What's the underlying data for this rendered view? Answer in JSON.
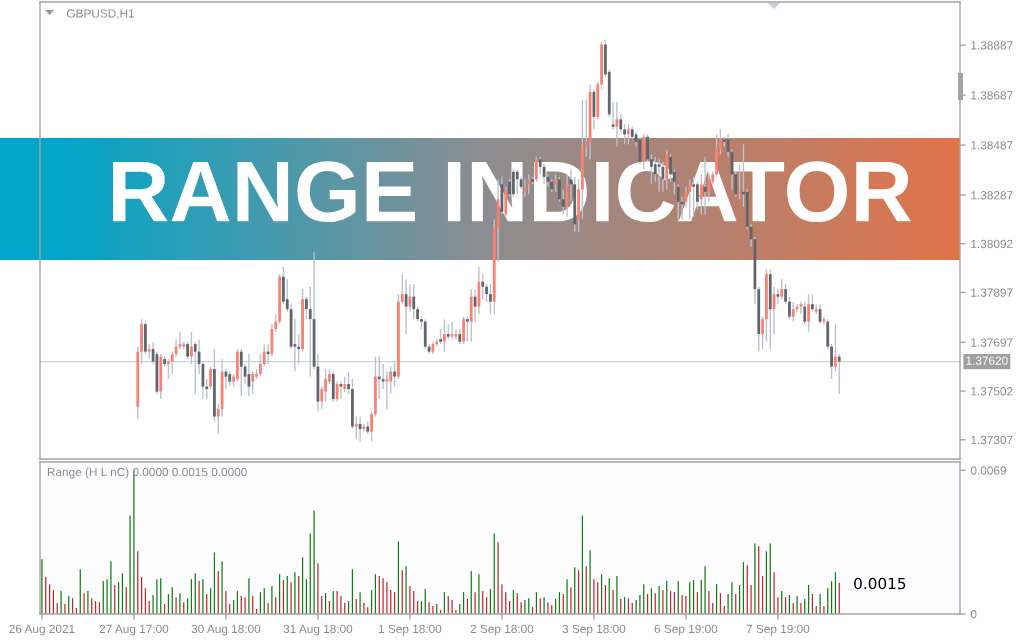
{
  "chart_data": [
    {
      "type": "candlestick",
      "title": "GBPUSD,H1",
      "annotations": [
        "RANGE INDICATOR"
      ],
      "categories": [
        null,
        null,
        null,
        null,
        null,
        null,
        null,
        null,
        null,
        null,
        null,
        null,
        null,
        null,
        null,
        null,
        null,
        null,
        null,
        null,
        null,
        null,
        null,
        null,
        null,
        null,
        null,
        null,
        null,
        null,
        null,
        null,
        null,
        null,
        null,
        null,
        null,
        null,
        null,
        null,
        null,
        null,
        null,
        null,
        null,
        null,
        null,
        null,
        null,
        null,
        null,
        null,
        null,
        null,
        null,
        null,
        null,
        null,
        null,
        null,
        null,
        null,
        null,
        null,
        null,
        null,
        null,
        null,
        null,
        null,
        null,
        null,
        null,
        null,
        null,
        null,
        null,
        null,
        null,
        null,
        null,
        null,
        null,
        null,
        null,
        null,
        null,
        null,
        null,
        null,
        null,
        null,
        null,
        null,
        null,
        null,
        null,
        null,
        null,
        null,
        null,
        null,
        null,
        null,
        null,
        null,
        null,
        null,
        null,
        null,
        null,
        null,
        null,
        null,
        null,
        null,
        null,
        null,
        null,
        null,
        null,
        null,
        null,
        null,
        null,
        null,
        null,
        null,
        null,
        null,
        null,
        null,
        null,
        null,
        null,
        null,
        null,
        null,
        null,
        null,
        null,
        null,
        null,
        null,
        null,
        null,
        null,
        null,
        null,
        null,
        null,
        null,
        null,
        null,
        null,
        null,
        null,
        null,
        null,
        null,
        null,
        null,
        null,
        null,
        null,
        null,
        null,
        null,
        null,
        null,
        null,
        null,
        null,
        null,
        null,
        null,
        null,
        null,
        null,
        null,
        null,
        null,
        null,
        null,
        null,
        null,
        null,
        null,
        null,
        null,
        null,
        null,
        null,
        null,
        null,
        null,
        null,
        null,
        null,
        null,
        null,
        null,
        null,
        null,
        null,
        null,
        null,
        null,
        null,
        null,
        null,
        null,
        null,
        null,
        null,
        null,
        null,
        null,
        null,
        null,
        null,
        null,
        null,
        null,
        null,
        null,
        null,
        null,
        null,
        null,
        null,
        null,
        null,
        null,
        null,
        null,
        null,
        null,
        null,
        null
      ],
      "ohlc": [
        null,
        null,
        null,
        null,
        null,
        null,
        null,
        null,
        null,
        null,
        null,
        null,
        null,
        null,
        null,
        null,
        null,
        null,
        null,
        null,
        null,
        null,
        null,
        null,
        null,
        [
          1.3744,
          1.3768,
          1.3739,
          1.3766
        ],
        [
          1.3766,
          1.3779,
          1.3761,
          1.3777
        ],
        [
          1.3777,
          1.3778,
          1.3765,
          1.3766
        ],
        [
          1.3766,
          1.3769,
          1.3763,
          1.3767
        ],
        [
          1.3767,
          1.377,
          1.3761,
          1.3762
        ],
        [
          1.3765,
          1.3766,
          1.3749,
          1.375
        ],
        [
          1.375,
          1.3765,
          1.3747,
          1.3764
        ],
        [
          1.3763,
          1.3764,
          1.376,
          1.3761
        ],
        [
          1.3761,
          1.3763,
          1.3755,
          1.3762
        ],
        [
          1.3762,
          1.3766,
          1.3757,
          1.3765
        ],
        [
          1.3765,
          1.3771,
          1.3764,
          1.3768
        ],
        [
          1.3768,
          1.3774,
          1.3767,
          1.3769
        ],
        [
          1.3768,
          1.377,
          1.3767,
          1.3769
        ],
        [
          1.3769,
          1.377,
          1.3763,
          1.3764
        ],
        [
          1.3764,
          1.3774,
          1.3761,
          1.3768
        ],
        [
          1.3769,
          1.377,
          1.3749,
          1.3766
        ],
        [
          1.3766,
          1.3771,
          1.3757,
          1.3761
        ],
        [
          1.3761,
          1.3762,
          1.3747,
          1.3752
        ],
        [
          1.3752,
          1.3755,
          1.3747,
          1.3751
        ],
        [
          1.3752,
          1.376,
          1.3751,
          1.3759
        ],
        [
          1.3759,
          1.3767,
          1.3738,
          1.374
        ],
        [
          1.374,
          1.3745,
          1.3733,
          1.3743
        ],
        [
          1.3743,
          1.3763,
          1.374,
          1.3758
        ],
        [
          1.3758,
          1.3759,
          1.3751,
          1.3756
        ],
        [
          1.3757,
          1.3758,
          1.3752,
          1.3754
        ],
        [
          1.3754,
          1.3757,
          1.3752,
          1.3756
        ],
        [
          1.3755,
          1.3767,
          1.3754,
          1.3766
        ],
        [
          1.3766,
          1.3767,
          1.3748,
          1.376
        ],
        [
          1.376,
          1.3761,
          1.3753,
          1.3756
        ],
        [
          1.3757,
          1.3765,
          1.3748,
          1.3752
        ],
        [
          1.3754,
          1.3758,
          1.3749,
          1.3757
        ],
        [
          1.3756,
          1.3759,
          1.3755,
          1.3757
        ],
        [
          1.3757,
          1.3765,
          1.3756,
          1.3761
        ],
        [
          1.3761,
          1.3769,
          1.376,
          1.3766
        ],
        [
          1.3766,
          1.3769,
          1.3761,
          1.3765
        ],
        [
          1.3765,
          1.3777,
          1.3764,
          1.3775
        ],
        [
          1.3775,
          1.3781,
          1.3774,
          1.3778
        ],
        [
          1.3778,
          1.3797,
          1.3777,
          1.3796
        ],
        [
          1.3796,
          1.38,
          1.3785,
          1.3786
        ],
        [
          1.3787,
          1.3795,
          1.3782,
          1.3783
        ],
        [
          1.3783,
          1.3785,
          1.3767,
          1.3768
        ],
        [
          1.3769,
          1.3779,
          1.3758,
          1.3768
        ],
        [
          1.3768,
          1.3773,
          1.3761,
          1.3767
        ],
        [
          1.3767,
          1.3791,
          1.3766,
          1.3787
        ],
        [
          1.3787,
          1.3788,
          1.3779,
          1.3783
        ],
        [
          1.3783,
          1.3792,
          1.3756,
          1.3779
        ],
        [
          1.3779,
          1.3806,
          1.3759,
          1.376
        ],
        [
          1.376,
          1.3765,
          1.3742,
          1.3746
        ],
        [
          1.3746,
          1.3752,
          1.3743,
          1.3751
        ],
        [
          1.375,
          1.3759,
          1.3746,
          1.3755
        ],
        [
          1.3754,
          1.3759,
          1.3753,
          1.3757
        ],
        [
          1.3757,
          1.3758,
          1.3746,
          1.3747
        ],
        [
          1.3747,
          1.3754,
          1.3746,
          1.3753
        ],
        [
          1.3753,
          1.3754,
          1.3747,
          1.3752
        ],
        [
          1.3751,
          1.3756,
          1.375,
          1.3753
        ],
        [
          1.3753,
          1.3758,
          1.3749,
          1.3751
        ],
        [
          1.3751,
          1.3755,
          1.3735,
          1.3736
        ],
        [
          1.3736,
          1.374,
          1.3731,
          1.3737
        ],
        [
          1.3737,
          1.374,
          1.373,
          1.3735
        ],
        [
          1.3735,
          1.3737,
          1.3734,
          1.3736
        ],
        [
          1.3736,
          1.3738,
          1.3733,
          1.3734
        ],
        [
          1.3734,
          1.3742,
          1.373,
          1.3741
        ],
        [
          1.3741,
          1.3764,
          1.374,
          1.3756
        ],
        [
          1.3756,
          1.3764,
          1.3747,
          1.3755
        ],
        [
          1.3755,
          1.3761,
          1.3751,
          1.3754
        ],
        [
          1.3754,
          1.3758,
          1.3743,
          1.3755
        ],
        [
          1.3754,
          1.376,
          1.3749,
          1.3758
        ],
        [
          1.3758,
          1.3762,
          1.3752,
          1.3756
        ],
        [
          1.3756,
          1.3789,
          1.3755,
          1.3786
        ],
        [
          1.3786,
          1.3797,
          1.3785,
          1.3789
        ],
        [
          1.3789,
          1.3795,
          1.3773,
          1.3784
        ],
        [
          1.3784,
          1.3793,
          1.3782,
          1.3788
        ],
        [
          1.3788,
          1.3793,
          1.3779,
          1.3783
        ],
        [
          1.3783,
          1.3784,
          1.3778,
          1.3779
        ],
        [
          1.3779,
          1.378,
          1.3775,
          1.3778
        ],
        [
          1.3778,
          1.3779,
          1.3767,
          1.3768
        ],
        [
          1.3768,
          1.3769,
          1.3765,
          1.3766
        ],
        [
          1.3766,
          1.377,
          1.3765,
          1.3769
        ],
        [
          1.3769,
          1.3771,
          1.3768,
          1.377
        ],
        [
          1.3771,
          1.3775,
          1.3769,
          1.377
        ],
        [
          1.377,
          1.3779,
          1.3766,
          1.3773
        ],
        [
          1.3773,
          1.3777,
          1.3771,
          1.3772
        ],
        [
          1.3772,
          1.3778,
          1.3771,
          1.3773
        ],
        [
          1.3772,
          1.3775,
          1.3771,
          1.3773
        ],
        [
          1.3773,
          1.3775,
          1.3769,
          1.377
        ],
        [
          1.377,
          1.378,
          1.3769,
          1.3779
        ],
        [
          1.3779,
          1.378,
          1.377,
          1.3778
        ],
        [
          1.3778,
          1.3791,
          1.377,
          1.3788
        ],
        [
          1.3788,
          1.3791,
          1.3778,
          1.3784
        ],
        [
          1.3784,
          1.38,
          1.3781,
          1.3794
        ],
        [
          1.3794,
          1.3797,
          1.3787,
          1.3792
        ],
        [
          1.3792,
          1.3793,
          1.3786,
          1.3789
        ],
        [
          1.3789,
          1.3793,
          1.3781,
          1.3786
        ],
        [
          1.3786,
          1.3819,
          1.3781,
          1.3816
        ],
        [
          1.3815,
          1.3835,
          1.3802,
          1.3827
        ],
        [
          1.3833,
          1.3836,
          1.3821,
          1.3822
        ],
        [
          1.3821,
          1.3832,
          1.382,
          1.3831
        ],
        [
          1.3834,
          1.3835,
          1.3828,
          1.3829
        ],
        [
          1.3838,
          1.3839,
          1.3828,
          1.3829
        ],
        [
          1.3838,
          1.3839,
          1.3829,
          1.3835
        ],
        [
          1.3835,
          1.3836,
          1.3831,
          1.3832
        ],
        [
          1.383,
          1.3835,
          1.3828,
          1.3832
        ],
        [
          1.3833,
          1.3837,
          1.3829,
          1.3835
        ],
        [
          1.3835,
          1.3836,
          1.3833,
          1.3834
        ],
        [
          1.3835,
          1.3844,
          1.3834,
          1.3843
        ],
        [
          1.3843,
          1.3844,
          1.3837,
          1.384
        ],
        [
          1.384,
          1.3841,
          1.3833,
          1.3836
        ],
        [
          1.3836,
          1.3837,
          1.3832,
          1.3834
        ],
        [
          1.3834,
          1.3835,
          1.383,
          1.3831
        ],
        [
          1.3833,
          1.3837,
          1.383,
          1.3835
        ],
        [
          1.3835,
          1.3836,
          1.3826,
          1.3827
        ],
        [
          1.3827,
          1.3831,
          1.3821,
          1.3824
        ],
        [
          1.3824,
          1.3837,
          1.382,
          1.3833
        ],
        [
          1.3835,
          1.3839,
          1.3826,
          1.3833
        ],
        [
          1.3833,
          1.3836,
          1.3814,
          1.3817
        ],
        [
          1.3819,
          1.3835,
          1.3814,
          1.3831
        ],
        [
          1.3831,
          1.3867,
          1.3819,
          1.3848
        ],
        [
          1.3848,
          1.3867,
          1.3844,
          1.385
        ],
        [
          1.385,
          1.3873,
          1.3843,
          1.387
        ],
        [
          1.387,
          1.3871,
          1.3855,
          1.386
        ],
        [
          1.386,
          1.3874,
          1.3859,
          1.3873
        ],
        [
          1.3873,
          1.389,
          1.3871,
          1.3889
        ],
        [
          1.3889,
          1.3891,
          1.3876,
          1.3877
        ],
        [
          1.3878,
          1.3879,
          1.386,
          1.3861
        ],
        [
          1.3857,
          1.3866,
          1.3855,
          1.3856
        ],
        [
          1.3856,
          1.3866,
          1.3848,
          1.3859
        ],
        [
          1.3859,
          1.3861,
          1.3854,
          1.3855
        ],
        [
          1.3855,
          1.3857,
          1.3849,
          1.3853
        ],
        [
          1.3853,
          1.3857,
          1.3849,
          1.3855
        ],
        [
          1.3855,
          1.3856,
          1.3851,
          1.3852
        ],
        [
          1.3853,
          1.3854,
          1.3848,
          1.385
        ],
        [
          1.3851,
          1.3852,
          1.3841,
          1.3842
        ],
        [
          1.3842,
          1.3853,
          1.3839,
          1.3852
        ],
        [
          1.3852,
          1.3853,
          1.3842,
          1.3843
        ],
        [
          1.3843,
          1.3845,
          1.3833,
          1.384
        ],
        [
          1.3841,
          1.3844,
          1.3834,
          1.3837
        ],
        [
          1.3841,
          1.3843,
          1.383,
          1.384
        ],
        [
          1.384,
          1.3842,
          1.383,
          1.3835
        ],
        [
          1.3835,
          1.3847,
          1.3831,
          1.3845
        ],
        [
          1.3844,
          1.3845,
          1.3834,
          1.3837
        ],
        [
          1.3838,
          1.3839,
          1.3829,
          1.3834
        ],
        [
          1.3832,
          1.3833,
          1.3818,
          1.3826
        ],
        [
          1.3826,
          1.3828,
          1.3819,
          1.3825
        ],
        [
          1.3826,
          1.3832,
          1.3824,
          1.383
        ],
        [
          1.383,
          1.3835,
          1.3819,
          1.3833
        ],
        [
          1.3833,
          1.3836,
          1.382,
          1.3832
        ],
        [
          1.3833,
          1.3834,
          1.3823,
          1.3826
        ],
        [
          1.3827,
          1.3837,
          1.3821,
          1.3833
        ],
        [
          1.3832,
          1.3844,
          1.3821,
          1.383
        ],
        [
          1.383,
          1.3837,
          1.3826,
          1.3835
        ],
        [
          1.3834,
          1.3838,
          1.3833,
          1.3837
        ],
        [
          1.3837,
          1.3853,
          1.3836,
          1.3847
        ],
        [
          1.3847,
          1.3855,
          1.3845,
          1.3851
        ],
        [
          1.3851,
          1.3852,
          1.3848,
          1.385
        ],
        [
          1.3851,
          1.3853,
          1.3844,
          1.3846
        ],
        [
          1.3846,
          1.3847,
          1.3831,
          1.3837
        ],
        [
          1.3837,
          1.3838,
          1.3828,
          1.3829
        ],
        [
          1.3829,
          1.3841,
          1.3827,
          1.383
        ],
        [
          1.383,
          1.3849,
          1.3824,
          1.3829
        ],
        [
          1.383,
          1.3831,
          1.3815,
          1.3816
        ],
        [
          1.3816,
          1.3817,
          1.3808,
          1.3811
        ],
        [
          1.3811,
          1.3812,
          1.3785,
          1.3791
        ],
        [
          1.3791,
          1.3792,
          1.3766,
          1.3773
        ],
        [
          1.3773,
          1.378,
          1.3767,
          1.3779
        ],
        [
          1.3779,
          1.3799,
          1.377,
          1.3797
        ],
        [
          1.3797,
          1.3799,
          1.3767,
          1.3783
        ],
        [
          1.3783,
          1.3792,
          1.3773,
          1.3789
        ],
        [
          1.3789,
          1.3791,
          1.3785,
          1.3788
        ],
        [
          1.3788,
          1.3795,
          1.3787,
          1.3791
        ],
        [
          1.3791,
          1.3793,
          1.3785,
          1.3786
        ],
        [
          1.3786,
          1.3788,
          1.3779,
          1.378
        ],
        [
          1.378,
          1.3786,
          1.3778,
          1.3783
        ],
        [
          1.3783,
          1.3785,
          1.3782,
          1.3784
        ],
        [
          1.3784,
          1.3786,
          1.3781,
          1.3785
        ],
        [
          1.3784,
          1.3786,
          1.3777,
          1.3778
        ],
        [
          1.3778,
          1.3789,
          1.3774,
          1.3785
        ],
        [
          1.3785,
          1.3789,
          1.3782,
          1.3783
        ],
        [
          1.3782,
          1.3785,
          1.3781,
          1.3783
        ],
        [
          1.3783,
          1.3785,
          1.3777,
          1.3778
        ],
        [
          1.3778,
          1.378,
          1.3777,
          1.3779
        ],
        [
          1.3778,
          1.3779,
          1.3767,
          1.3768
        ],
        [
          1.3768,
          1.3769,
          1.3755,
          1.376
        ],
        [
          1.376,
          1.3777,
          1.3758,
          1.3764
        ],
        [
          1.3764,
          1.3765,
          1.3749,
          1.3762
        ],
        null,
        null,
        null,
        null,
        null,
        null,
        null,
        null,
        null,
        null,
        null,
        null,
        null,
        null,
        null,
        null,
        null,
        null,
        null,
        null,
        null,
        null,
        null,
        null,
        null,
        null,
        null,
        null,
        null,
        null,
        null
      ],
      "colors": [
        null,
        null,
        null,
        null,
        null,
        null,
        null,
        null,
        null,
        null,
        null,
        null,
        null,
        null,
        null,
        null,
        null,
        null,
        null,
        null,
        null,
        null,
        null,
        null,
        null,
        "#fa8072",
        "#fa8072",
        "#5f646d",
        "#fa8072",
        "#5f646d",
        "#5f646d",
        "#fa8072",
        "#5f646d",
        "#fa8072",
        "#fa8072",
        "#fa8072",
        "#fa8072",
        "#fa8072",
        "#5f646d",
        "#fa8072",
        "#5f646d",
        "#5f646d",
        "#5f646d",
        "#5f646d",
        "#fa8072",
        "#5f646d",
        "#fa8072",
        "#fa8072",
        "#5f646d",
        "#5f646d",
        "#fa8072",
        "#fa8072",
        "#5f646d",
        "#5f646d",
        "#5f646d",
        "#fa8072",
        "#fa8072",
        "#fa8072",
        "#fa8072",
        "#5f646d",
        "#fa8072",
        "#fa8072",
        "#fa8072",
        "#5f646d",
        "#5f646d",
        "#5f646d",
        "#5f646d",
        "#5f646d",
        "#fa8072",
        "#5f646d",
        "#5f646d",
        "#5f646d",
        "#5f646d",
        "#fa8072",
        "#fa8072",
        "#fa8072",
        "#5f646d",
        "#fa8072",
        "#5f646d",
        "#fa8072",
        "#5f646d",
        "#5f646d",
        "#fa8072",
        "#5f646d",
        "#fa8072",
        "#5f646d",
        "#fa8072",
        "#fa8072",
        "#5f646d",
        "#5f646d",
        "#fa8072",
        "#fa8072",
        "#5f646d",
        "#fa8072",
        "#fa8072",
        "#5f646d",
        "#fa8072",
        "#5f646d",
        "#5f646d",
        "#5f646d",
        "#5f646d",
        "#5f646d",
        "#fa8072",
        "#fa8072",
        "#5f646d",
        "#fa8072",
        "#5f646d",
        "#fa8072",
        "#fa8072",
        "#5f646d",
        "#fa8072",
        "#5f646d",
        "#fa8072",
        "#5f646d",
        "#fa8072",
        "#5f646d",
        "#5f646d",
        "#5f646d",
        "#fa8072",
        "#fa8072",
        "#5f646d",
        "#fa8072",
        "#5f646d",
        "#5f646d",
        "#5f646d",
        "#5f646d",
        "#fa8072",
        "#fa8072",
        "#5f646d",
        "#fa8072",
        "#5f646d",
        "#5f646d",
        "#5f646d",
        "#5f646d",
        "#fa8072",
        "#5f646d",
        "#5f646d",
        "#fa8072",
        "#5f646d",
        "#5f646d",
        "#fa8072",
        "#fa8072",
        "#fa8072",
        "#fa8072",
        "#5f646d",
        "#fa8072",
        "#fa8072",
        "#5f646d",
        "#5f646d",
        "#5f646d",
        "#fa8072",
        "#5f646d",
        "#5f646d",
        "#fa8072",
        "#5f646d",
        "#5f646d",
        "#5f646d",
        "#fa8072",
        "#5f646d",
        "#5f646d",
        "#5f646d",
        "#5f646d",
        "#5f646d",
        "#fa8072",
        "#5f646d",
        "#5f646d",
        "#5f646d",
        "#5f646d",
        "#fa8072",
        "#fa8072",
        "#5f646d",
        "#5f646d",
        "#fa8072",
        "#5f646d",
        "#fa8072",
        "#fa8072",
        "#fa8072",
        "#fa8072",
        "#5f646d",
        "#5f646d",
        "#5f646d",
        "#5f646d",
        "#fa8072",
        "#5f646d",
        "#5f646d",
        "#5f646d",
        "#5f646d",
        "#5f646d",
        "#fa8072",
        "#fa8072",
        "#5f646d",
        "#fa8072",
        "#5f646d",
        "#fa8072",
        "#5f646d",
        "#5f646d",
        "#fa8072",
        "#fa8072",
        "#fa8072",
        "#5f646d",
        "#fa8072",
        "#5f646d",
        "#fa8072",
        "#5f646d",
        "#fa8072",
        "#5f646d",
        "#5f646d",
        "#fa8072",
        "#5f646d",
        null,
        null,
        null,
        null,
        null,
        null,
        null,
        null,
        null,
        null,
        null,
        null,
        null,
        null,
        null,
        null,
        null,
        null,
        null,
        null,
        null,
        null,
        null,
        null,
        null,
        null,
        null,
        null,
        null,
        null,
        null
      ],
      "color": "#bcc2cc",
      "ylim": [
        1.3723,
        1.3906
      ],
      "yticks": [
        1.37307,
        1.37502,
        1.37697,
        1.37897,
        1.38092,
        1.38287,
        1.38487,
        1.38687,
        1.38887
      ],
      "ref_lines": [
        {
          "axis": "y",
          "value": 1.3762,
          "label": "1.37620",
          "color": "#cdd1d8"
        }
      ],
      "tick_labels": "y"
    },
    {
      "type": "bar",
      "title": "Range (H L nC) 0.0000 0.0015 0.0000",
      "annotations": [
        "0.0015"
      ],
      "categories": [
        "26 Aug 2021",
        null,
        null,
        null,
        null,
        null,
        null,
        null,
        null,
        null,
        null,
        null,
        null,
        null,
        null,
        null,
        null,
        null,
        null,
        null,
        null,
        null,
        null,
        null,
        "27 Aug 17:00",
        null,
        null,
        null,
        null,
        null,
        null,
        null,
        null,
        null,
        null,
        null,
        null,
        null,
        null,
        null,
        null,
        null,
        null,
        null,
        null,
        null,
        null,
        null,
        "30 Aug 18:00",
        null,
        null,
        null,
        null,
        null,
        null,
        null,
        null,
        null,
        null,
        null,
        null,
        null,
        null,
        null,
        null,
        null,
        null,
        null,
        null,
        null,
        null,
        null,
        "31 Aug 18:00",
        null,
        null,
        null,
        null,
        null,
        null,
        null,
        null,
        null,
        null,
        null,
        null,
        null,
        null,
        null,
        null,
        null,
        null,
        null,
        null,
        null,
        null,
        null,
        "1 Sep 18:00",
        null,
        null,
        null,
        null,
        null,
        null,
        null,
        null,
        null,
        null,
        null,
        null,
        null,
        null,
        null,
        null,
        null,
        null,
        null,
        null,
        null,
        null,
        null,
        "2 Sep 18:00",
        null,
        null,
        null,
        null,
        null,
        null,
        null,
        null,
        null,
        null,
        null,
        null,
        null,
        null,
        null,
        null,
        null,
        null,
        null,
        null,
        null,
        null,
        null,
        "3 Sep 18:00",
        null,
        null,
        null,
        null,
        null,
        null,
        null,
        null,
        null,
        null,
        null,
        null,
        null,
        null,
        null,
        null,
        null,
        null,
        null,
        null,
        null,
        null,
        null,
        "6 Sep 19:00",
        null,
        null,
        null,
        null,
        null,
        null,
        null,
        null,
        null,
        null,
        null,
        null,
        null,
        null,
        null,
        null,
        null,
        null,
        null,
        null,
        null,
        null,
        null,
        "7 Sep 19:00",
        null,
        null,
        null,
        null,
        null,
        null,
        null,
        null,
        null,
        null,
        null,
        null,
        null,
        null,
        null,
        null,
        null,
        null,
        null,
        null,
        null,
        null,
        null,
        null,
        null,
        null,
        null,
        null,
        null,
        null,
        null,
        null,
        null,
        null,
        null,
        null,
        null,
        null,
        null,
        null,
        null,
        null,
        null,
        null,
        null,
        null,
        null
      ],
      "values": [
        0.00263,
        0.00178,
        0.00143,
        0.00115,
        0.00053,
        0.0011,
        0.00048,
        0.00086,
        0.00076,
        0.00029,
        0.00215,
        0.001,
        0.0011,
        0.00076,
        0.00062,
        0.00057,
        0.00158,
        0.00167,
        0.00253,
        0.00139,
        0.00153,
        0.00196,
        0.00129,
        0.00473,
        0.0069,
        0.00301,
        0.00177,
        0.00124,
        0.00062,
        0.00091,
        0.00167,
        0.00172,
        0.00048,
        0.00096,
        0.00129,
        0.00081,
        0.001,
        0.00057,
        0.00076,
        0.00167,
        0.00196,
        0.00158,
        0.00167,
        0.00096,
        0.00124,
        0.00296,
        0.00206,
        0.00253,
        0.0011,
        0.00048,
        0.00067,
        0.0011,
        0.00086,
        0.00081,
        0.00172,
        0.00086,
        0.00024,
        0.00105,
        0.00124,
        0.00053,
        0.00134,
        0.00081,
        0.00191,
        0.00163,
        0.00182,
        0.00153,
        0.00201,
        0.00182,
        0.00272,
        0.00167,
        0.00387,
        0.00497,
        0.00244,
        0.00086,
        0.001,
        0.00062,
        0.0011,
        0.0011,
        0.00086,
        0.00053,
        0.00062,
        0.00215,
        0.00072,
        0.00105,
        0.00053,
        0.00033,
        0.00115,
        0.00191,
        0.00182,
        0.00172,
        0.00153,
        0.00115,
        0.00105,
        0.00349,
        0.0021,
        0.00229,
        0.00134,
        0.0011,
        0.00062,
        0.00062,
        0.0012,
        0.00057,
        0.00038,
        0.00048,
        0.00019,
        0.00105,
        0.00086,
        0.00067,
        0.00019,
        0.00048,
        0.00105,
        0.00072,
        0.00206,
        0.00105,
        0.00191,
        0.0011,
        0.00081,
        0.0012,
        0.00387,
        0.00344,
        0.00143,
        0.00105,
        0.00062,
        0.00115,
        0.001,
        0.00057,
        0.00067,
        0.00076,
        0.00033,
        0.00105,
        0.00076,
        0.00081,
        0.00057,
        0.00043,
        0.00072,
        0.00105,
        0.00096,
        0.00167,
        0.00129,
        0.00225,
        0.0021,
        0.00473,
        0.00229,
        0.00306,
        0.00167,
        0.00153,
        0.00191,
        0.00139,
        0.00172,
        0.00115,
        0.00182,
        0.00072,
        0.00081,
        0.00076,
        0.00053,
        0.00067,
        0.00091,
        0.00143,
        0.00096,
        0.00124,
        0.001,
        0.00134,
        0.00115,
        0.00158,
        0.0011,
        0.00105,
        0.00158,
        0.00091,
        0.00086,
        0.00153,
        0.00163,
        0.00105,
        0.00163,
        0.00229,
        0.0011,
        0.00053,
        0.00143,
        0.001,
        0.00038,
        0.00096,
        0.00153,
        0.00096,
        0.00139,
        0.00249,
        0.00234,
        0.00139,
        0.00339,
        0.00325,
        0.00182,
        0.00301,
        0.00339,
        0.00201,
        0.00081,
        0.0011,
        0.00081,
        0.00091,
        0.00053,
        0.00086,
        0.00053,
        0.00072,
        0.00139,
        0.00096,
        0.00038,
        0.00096,
        0.00038,
        0.00124,
        0.00158,
        0.00201,
        0.0015,
        null,
        null,
        null,
        null,
        null,
        null,
        null,
        null,
        null,
        null,
        null,
        null,
        null,
        null,
        null,
        null,
        null,
        null,
        null,
        null,
        null,
        null,
        null,
        null,
        null,
        null,
        null,
        null,
        null,
        null,
        null
      ],
      "colors": [
        "#117a11",
        "#c0262c",
        "#c0262c",
        "#c0262c",
        "#c0262c",
        "#117a11",
        "#c0262c",
        "#117a11",
        "#c0262c",
        "#c0262c",
        "#117a11",
        "#c0262c",
        "#117a11",
        "#c0262c",
        "#c0262c",
        "#c0262c",
        "#117a11",
        "#117a11",
        "#117a11",
        "#c0262c",
        "#117a11",
        "#117a11",
        "#c0262c",
        "#117a11",
        "#117a11",
        "#c0262c",
        "#c0262c",
        "#c0262c",
        "#c0262c",
        "#117a11",
        "#117a11",
        "#117a11",
        "#c0262c",
        "#117a11",
        "#117a11",
        "#c0262c",
        "#117a11",
        "#c0262c",
        "#117a11",
        "#117a11",
        "#117a11",
        "#c0262c",
        "#117a11",
        "#c0262c",
        "#117a11",
        "#117a11",
        "#c0262c",
        "#117a11",
        "#c0262c",
        "#c0262c",
        "#117a11",
        "#117a11",
        "#c0262c",
        "#c0262c",
        "#117a11",
        "#c0262c",
        "#c0262c",
        "#117a11",
        "#117a11",
        "#c0262c",
        "#117a11",
        "#c0262c",
        "#117a11",
        "#c0262c",
        "#117a11",
        "#c0262c",
        "#117a11",
        "#c0262c",
        "#117a11",
        "#117a11",
        "#117a11",
        "#117a11",
        "#c0262c",
        "#c0262c",
        "#117a11",
        "#c0262c",
        "#117a11",
        "#c0262c",
        "#c0262c",
        "#c0262c",
        "#117a11",
        "#117a11",
        "#c0262c",
        "#117a11",
        "#c0262c",
        "#c0262c",
        "#117a11",
        "#117a11",
        "#c0262c",
        "#c0262c",
        "#c0262c",
        "#c0262c",
        "#c0262c",
        "#117a11",
        "#c0262c",
        "#117a11",
        "#c0262c",
        "#c0262c",
        "#c0262c",
        "#117a11",
        "#117a11",
        "#c0262c",
        "#c0262c",
        "#117a11",
        "#c0262c",
        "#117a11",
        "#c0262c",
        "#c0262c",
        "#c0262c",
        "#117a11",
        "#117a11",
        "#c0262c",
        "#117a11",
        "#c0262c",
        "#117a11",
        "#c0262c",
        "#c0262c",
        "#117a11",
        "#117a11",
        "#c0262c",
        "#c0262c",
        "#c0262c",
        "#c0262c",
        "#117a11",
        "#c0262c",
        "#c0262c",
        "#117a11",
        "#117a11",
        "#c0262c",
        "#117a11",
        "#c0262c",
        "#117a11",
        "#c0262c",
        "#c0262c",
        "#117a11",
        "#117a11",
        "#c0262c",
        "#117a11",
        "#c0262c",
        "#117a11",
        "#c0262c",
        "#117a11",
        "#c0262c",
        "#117a11",
        "#c0262c",
        "#c0262c",
        "#117a11",
        "#c0262c",
        "#117a11",
        "#c0262c",
        "#117a11",
        "#c0262c",
        "#117a11",
        "#c0262c",
        "#c0262c",
        "#117a11",
        "#117a11",
        "#117a11",
        "#c0262c",
        "#117a11",
        "#c0262c",
        "#117a11",
        "#c0262c",
        "#117a11",
        "#c0262c",
        "#c0262c",
        "#117a11",
        "#c0262c",
        "#c0262c",
        "#117a11",
        "#117a11",
        "#c0262c",
        "#117a11",
        "#117a11",
        "#c0262c",
        "#c0262c",
        "#117a11",
        "#c0262c",
        "#c0262c",
        "#117a11",
        "#117a11",
        "#c0262c",
        "#117a11",
        "#117a11",
        "#c0262c",
        "#c0262c",
        "#117a11",
        "#c0262c",
        "#c0262c",
        "#117a11",
        "#117a11",
        "#c0262c",
        "#c0262c",
        "#117a11",
        "#c0262c",
        "#117a11",
        "#c0262c",
        "#117a11",
        "#c0262c",
        "#117a11",
        "#117a11",
        "#c0262c",
        "#c0262c",
        "#117a11",
        "#c0262c",
        "#117a11",
        "#117a11",
        "#117a11",
        "#c0262c",
        null,
        null,
        null,
        null,
        null,
        null,
        null,
        null,
        null,
        null,
        null,
        null,
        null,
        null,
        null,
        null,
        null,
        null,
        null,
        null,
        null,
        null,
        null,
        null,
        null,
        null,
        null,
        null,
        null,
        null,
        null
      ],
      "ylim": [
        0,
        0.0073
      ],
      "yticks": [
        0,
        0.0069
      ]
    }
  ]
}
